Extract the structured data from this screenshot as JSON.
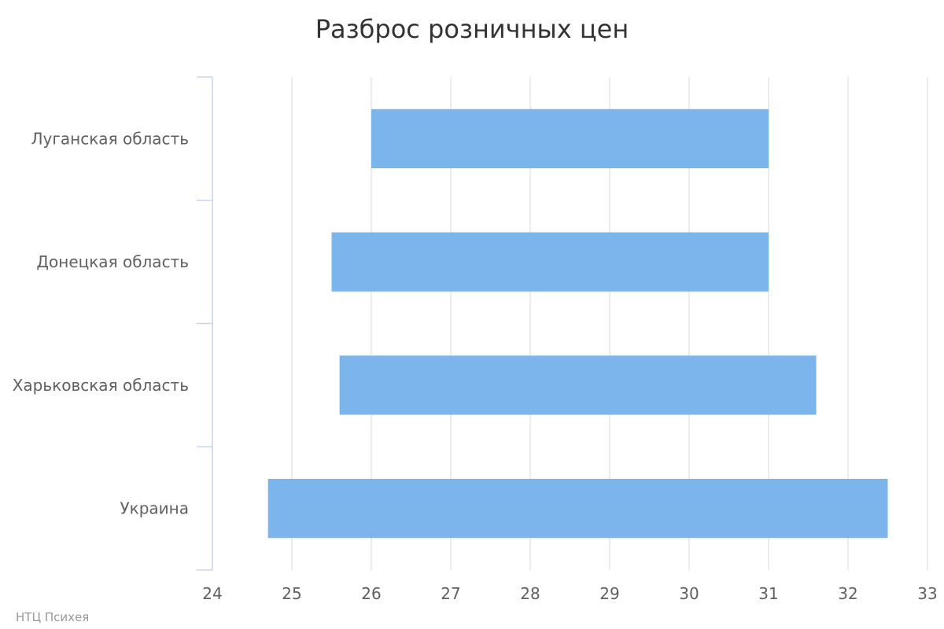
{
  "chart_data": {
    "type": "bar",
    "orientation": "horizontal",
    "chart_subtype": "range",
    "title": "Разброс розничных цен",
    "credit": "НТЦ Психея",
    "categories": [
      "Луганская область",
      "Донецкая область",
      "Харьковская область",
      "Украина"
    ],
    "series": [
      {
        "low": [
          26.0,
          25.5,
          25.6,
          24.7
        ],
        "high": [
          31.0,
          31.0,
          31.6,
          32.5
        ]
      }
    ],
    "xlim": [
      24,
      33
    ],
    "x_ticks": [
      "24",
      "25",
      "26",
      "27",
      "28",
      "29",
      "30",
      "31",
      "32",
      "33"
    ],
    "grid": true,
    "colors": {
      "bar": "#7cb5ec",
      "grid": "#e6e6e6",
      "axis": "#ccd6eb"
    }
  }
}
